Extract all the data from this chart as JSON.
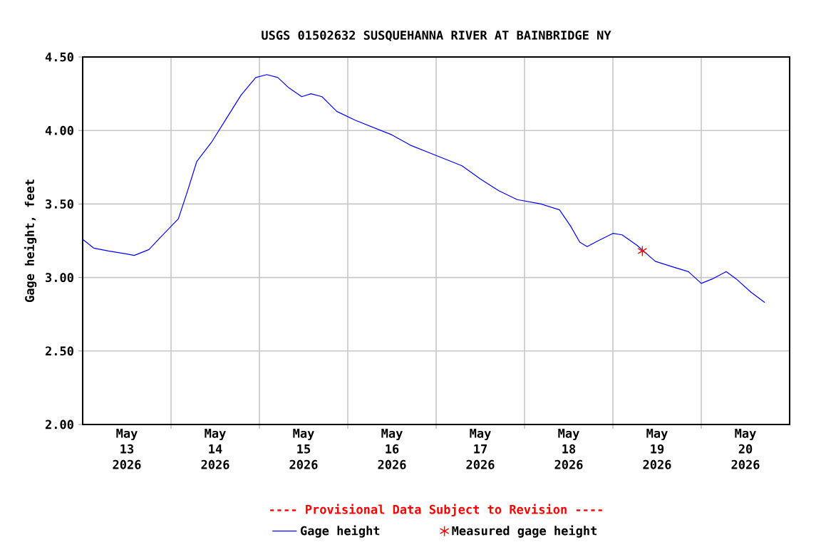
{
  "chart_data": {
    "type": "line",
    "title": "USGS 01502632 SUSQUEHANNA RIVER AT BAINBRIDGE NY",
    "ylabel": "Gage height, feet",
    "annotations": [
      "---- Provisional Data Subject to Revision ----"
    ],
    "xlim": [
      "2026-05-13T00:00",
      "2026-05-21T00:00"
    ],
    "xticks": [
      {
        "value": "2026-05-13T12:00",
        "label": "May 13 2026"
      },
      {
        "value": "2026-05-14T12:00",
        "label": "May 14 2026"
      },
      {
        "value": "2026-05-15T12:00",
        "label": "May 15 2026"
      },
      {
        "value": "2026-05-16T12:00",
        "label": "May 16 2026"
      },
      {
        "value": "2026-05-17T12:00",
        "label": "May 17 2026"
      },
      {
        "value": "2026-05-18T12:00",
        "label": "May 18 2026"
      },
      {
        "value": "2026-05-19T12:00",
        "label": "May 19 2026"
      },
      {
        "value": "2026-05-20T12:00",
        "label": "May 20 2026"
      },
      {
        "value": "2026-05-14T00:00",
        "label": null
      },
      {
        "value": "2026-05-15T00:00",
        "label": null
      },
      {
        "value": "2026-05-16T00:00",
        "label": null
      },
      {
        "value": "2026-05-17T00:00",
        "label": null
      },
      {
        "value": "2026-05-18T00:00",
        "label": null
      },
      {
        "value": "2026-05-19T00:00",
        "label": null
      },
      {
        "value": "2026-05-20T00:00",
        "label": null
      }
    ],
    "ylim": [
      2.0,
      4.5
    ],
    "yticks": [
      {
        "value": 2.0,
        "label": "2.00"
      },
      {
        "value": 2.5,
        "label": "2.50"
      },
      {
        "value": 3.0,
        "label": "3.00"
      },
      {
        "value": 3.5,
        "label": "3.50"
      },
      {
        "value": 4.0,
        "label": "4.00"
      },
      {
        "value": 4.5,
        "label": "4.50"
      }
    ],
    "grid": true,
    "legend": "bottom",
    "series": [
      {
        "name": "Gage height",
        "type": "line",
        "marker": "none",
        "color": "#0000ff",
        "x": [
          "2026-05-13T00:00",
          "2026-05-13T03:00",
          "2026-05-13T07:00",
          "2026-05-13T12:00",
          "2026-05-13T14:00",
          "2026-05-13T18:00",
          "2026-05-13T21:00",
          "2026-05-14T02:00",
          "2026-05-14T04:30",
          "2026-05-14T07:00",
          "2026-05-14T11:00",
          "2026-05-14T15:00",
          "2026-05-14T19:00",
          "2026-05-14T23:00",
          "2026-05-15T02:00",
          "2026-05-15T05:00",
          "2026-05-15T08:00",
          "2026-05-15T11:30",
          "2026-05-15T14:00",
          "2026-05-15T17:00",
          "2026-05-15T21:00",
          "2026-05-16T02:00",
          "2026-05-16T07:00",
          "2026-05-16T12:00",
          "2026-05-16T17:00",
          "2026-05-16T23:00",
          "2026-05-17T03:00",
          "2026-05-17T07:00",
          "2026-05-17T12:00",
          "2026-05-17T17:00",
          "2026-05-17T22:00",
          "2026-05-18T04:30",
          "2026-05-18T09:30",
          "2026-05-18T12:30",
          "2026-05-18T15:00",
          "2026-05-18T17:00",
          "2026-05-18T20:00",
          "2026-05-19T00:00",
          "2026-05-19T02:30",
          "2026-05-19T06:30",
          "2026-05-19T11:30",
          "2026-05-19T16:30",
          "2026-05-19T20:30",
          "2026-05-20T00:00",
          "2026-05-20T03:00",
          "2026-05-20T06:45",
          "2026-05-20T09:30",
          "2026-05-20T13:30",
          "2026-05-20T17:15"
        ],
        "values": [
          3.26,
          3.2,
          3.18,
          3.16,
          3.15,
          3.19,
          3.27,
          3.4,
          3.59,
          3.79,
          3.92,
          4.08,
          4.24,
          4.36,
          4.38,
          4.36,
          4.29,
          4.23,
          4.25,
          4.23,
          4.13,
          4.07,
          4.02,
          3.97,
          3.9,
          3.84,
          3.8,
          3.76,
          3.67,
          3.59,
          3.53,
          3.5,
          3.46,
          3.35,
          3.24,
          3.21,
          3.25,
          3.3,
          3.29,
          3.22,
          3.11,
          3.07,
          3.04,
          2.96,
          2.99,
          3.04,
          2.99,
          2.9,
          2.83
        ]
      },
      {
        "name": "Measured gage height",
        "type": "scatter",
        "marker": "cross",
        "color": "#ff0000",
        "x": [
          "2026-05-19T08:00"
        ],
        "values": [
          3.18
        ]
      }
    ]
  }
}
